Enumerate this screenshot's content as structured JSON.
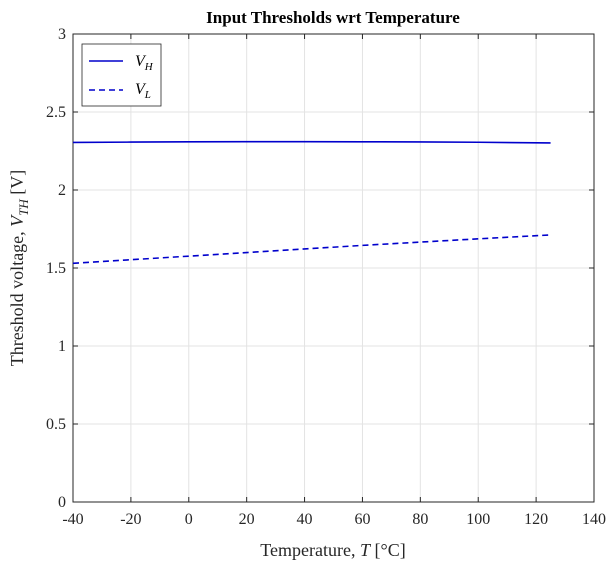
{
  "chart_data": {
    "type": "line",
    "title": "Input Thresholds wrt Temperature",
    "xlabel": {
      "prefix": "Temperature, ",
      "symbol": "T",
      "unit": " [°C]"
    },
    "ylabel": {
      "prefix": "Threshold voltage, ",
      "symbol": "V",
      "subscript": "TH",
      "unit": " [V]"
    },
    "xlim": [
      -40,
      140
    ],
    "ylim": [
      0,
      3
    ],
    "xticks": [
      -40,
      -20,
      0,
      20,
      40,
      60,
      80,
      100,
      120,
      140
    ],
    "yticks": [
      0,
      0.5,
      1,
      1.5,
      2,
      2.5,
      3
    ],
    "xtick_labels": [
      "-40",
      "-20",
      "0",
      "20",
      "40",
      "60",
      "80",
      "100",
      "120",
      "140"
    ],
    "ytick_labels": [
      "0",
      "0.5",
      "1",
      "1.5",
      "2",
      "2.5",
      "3"
    ],
    "grid": true,
    "legend_position": "top-left",
    "series": [
      {
        "name": "V",
        "subscript": "H",
        "style": "solid",
        "color": "#0000cc",
        "x": [
          -40,
          -20,
          0,
          20,
          40,
          60,
          80,
          100,
          125
        ],
        "y": [
          2.305,
          2.307,
          2.309,
          2.31,
          2.31,
          2.309,
          2.308,
          2.306,
          2.302
        ]
      },
      {
        "name": "V",
        "subscript": "L",
        "style": "dashed",
        "color": "#0000cc",
        "x": [
          -40,
          -20,
          0,
          20,
          40,
          60,
          80,
          100,
          125
        ],
        "y": [
          1.53,
          1.553,
          1.576,
          1.599,
          1.622,
          1.645,
          1.666,
          1.687,
          1.712
        ]
      }
    ]
  }
}
